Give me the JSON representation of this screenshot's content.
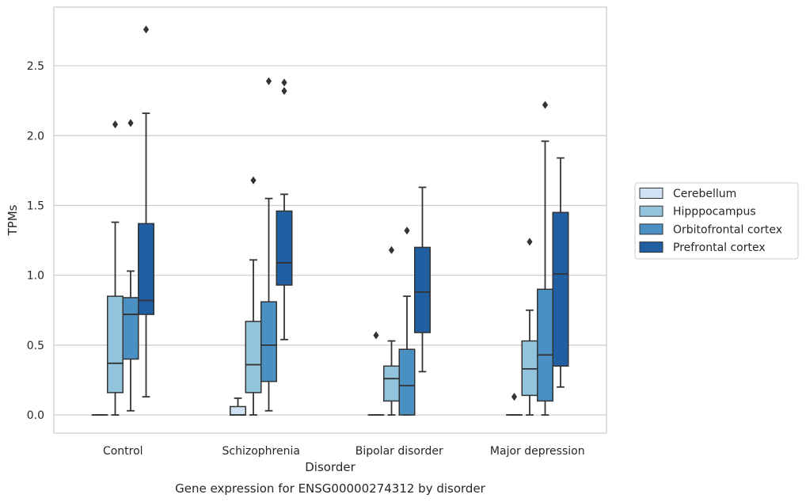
{
  "chart_data": {
    "type": "box",
    "title": "",
    "caption": "Gene expression for ENSG00000274312 by disorder",
    "xlabel": "Disorder",
    "ylabel": "TPMs",
    "ylim": [
      -0.13,
      2.92
    ],
    "yticks": [
      "0.0",
      "0.5",
      "1.0",
      "1.5",
      "2.0",
      "2.5"
    ],
    "grid": "horizontal",
    "legend_position": "right",
    "categories": [
      "Control",
      "Schizophrenia",
      "Bipolar disorder",
      "Major depression"
    ],
    "series": [
      {
        "name": "Cerebellum",
        "color": "#cfe1f2",
        "boxes": [
          {
            "whisker_low": 0.0,
            "q1": 0.0,
            "median": 0.0,
            "q3": 0.0,
            "whisker_high": 0.0,
            "outliers": []
          },
          {
            "whisker_low": 0.0,
            "q1": 0.0,
            "median": 0.0,
            "q3": 0.06,
            "whisker_high": 0.12,
            "outliers": []
          },
          {
            "whisker_low": 0.0,
            "q1": 0.0,
            "median": 0.0,
            "q3": 0.0,
            "whisker_high": 0.0,
            "outliers": [
              0.57
            ]
          },
          {
            "whisker_low": 0.0,
            "q1": 0.0,
            "median": 0.0,
            "q3": 0.0,
            "whisker_high": 0.0,
            "outliers": [
              0.13
            ]
          }
        ]
      },
      {
        "name": "Hipppocampus",
        "color": "#93c4de",
        "boxes": [
          {
            "whisker_low": 0.0,
            "q1": 0.16,
            "median": 0.37,
            "q3": 0.85,
            "whisker_high": 1.38,
            "outliers": [
              2.08
            ]
          },
          {
            "whisker_low": 0.0,
            "q1": 0.16,
            "median": 0.36,
            "q3": 0.67,
            "whisker_high": 1.11,
            "outliers": [
              1.68
            ]
          },
          {
            "whisker_low": 0.0,
            "q1": 0.1,
            "median": 0.26,
            "q3": 0.35,
            "whisker_high": 0.53,
            "outliers": [
              1.18
            ]
          },
          {
            "whisker_low": 0.0,
            "q1": 0.14,
            "median": 0.33,
            "q3": 0.53,
            "whisker_high": 0.75,
            "outliers": [
              1.24
            ]
          }
        ]
      },
      {
        "name": "Orbitofrontal cortex",
        "color": "#4a90c2",
        "boxes": [
          {
            "whisker_low": 0.03,
            "q1": 0.4,
            "median": 0.72,
            "q3": 0.84,
            "whisker_high": 1.03,
            "outliers": [
              2.09
            ]
          },
          {
            "whisker_low": 0.03,
            "q1": 0.24,
            "median": 0.5,
            "q3": 0.81,
            "whisker_high": 1.55,
            "outliers": [
              2.39
            ]
          },
          {
            "whisker_low": 0.0,
            "q1": 0.0,
            "median": 0.21,
            "q3": 0.47,
            "whisker_high": 0.85,
            "outliers": [
              1.32
            ]
          },
          {
            "whisker_low": 0.0,
            "q1": 0.1,
            "median": 0.43,
            "q3": 0.9,
            "whisker_high": 1.96,
            "outliers": [
              2.22
            ]
          }
        ]
      },
      {
        "name": "Prefrontal cortex",
        "color": "#1f5fa2",
        "boxes": [
          {
            "whisker_low": 0.13,
            "q1": 0.72,
            "median": 0.82,
            "q3": 1.37,
            "whisker_high": 2.16,
            "outliers": [
              2.76
            ]
          },
          {
            "whisker_low": 0.54,
            "q1": 0.93,
            "median": 1.09,
            "q3": 1.46,
            "whisker_high": 1.58,
            "outliers": [
              2.32,
              2.38
            ]
          },
          {
            "whisker_low": 0.31,
            "q1": 0.59,
            "median": 0.88,
            "q3": 1.2,
            "whisker_high": 1.63,
            "outliers": []
          },
          {
            "whisker_low": 0.2,
            "q1": 0.35,
            "median": 1.01,
            "q3": 1.45,
            "whisker_high": 1.84,
            "outliers": []
          }
        ]
      }
    ]
  }
}
